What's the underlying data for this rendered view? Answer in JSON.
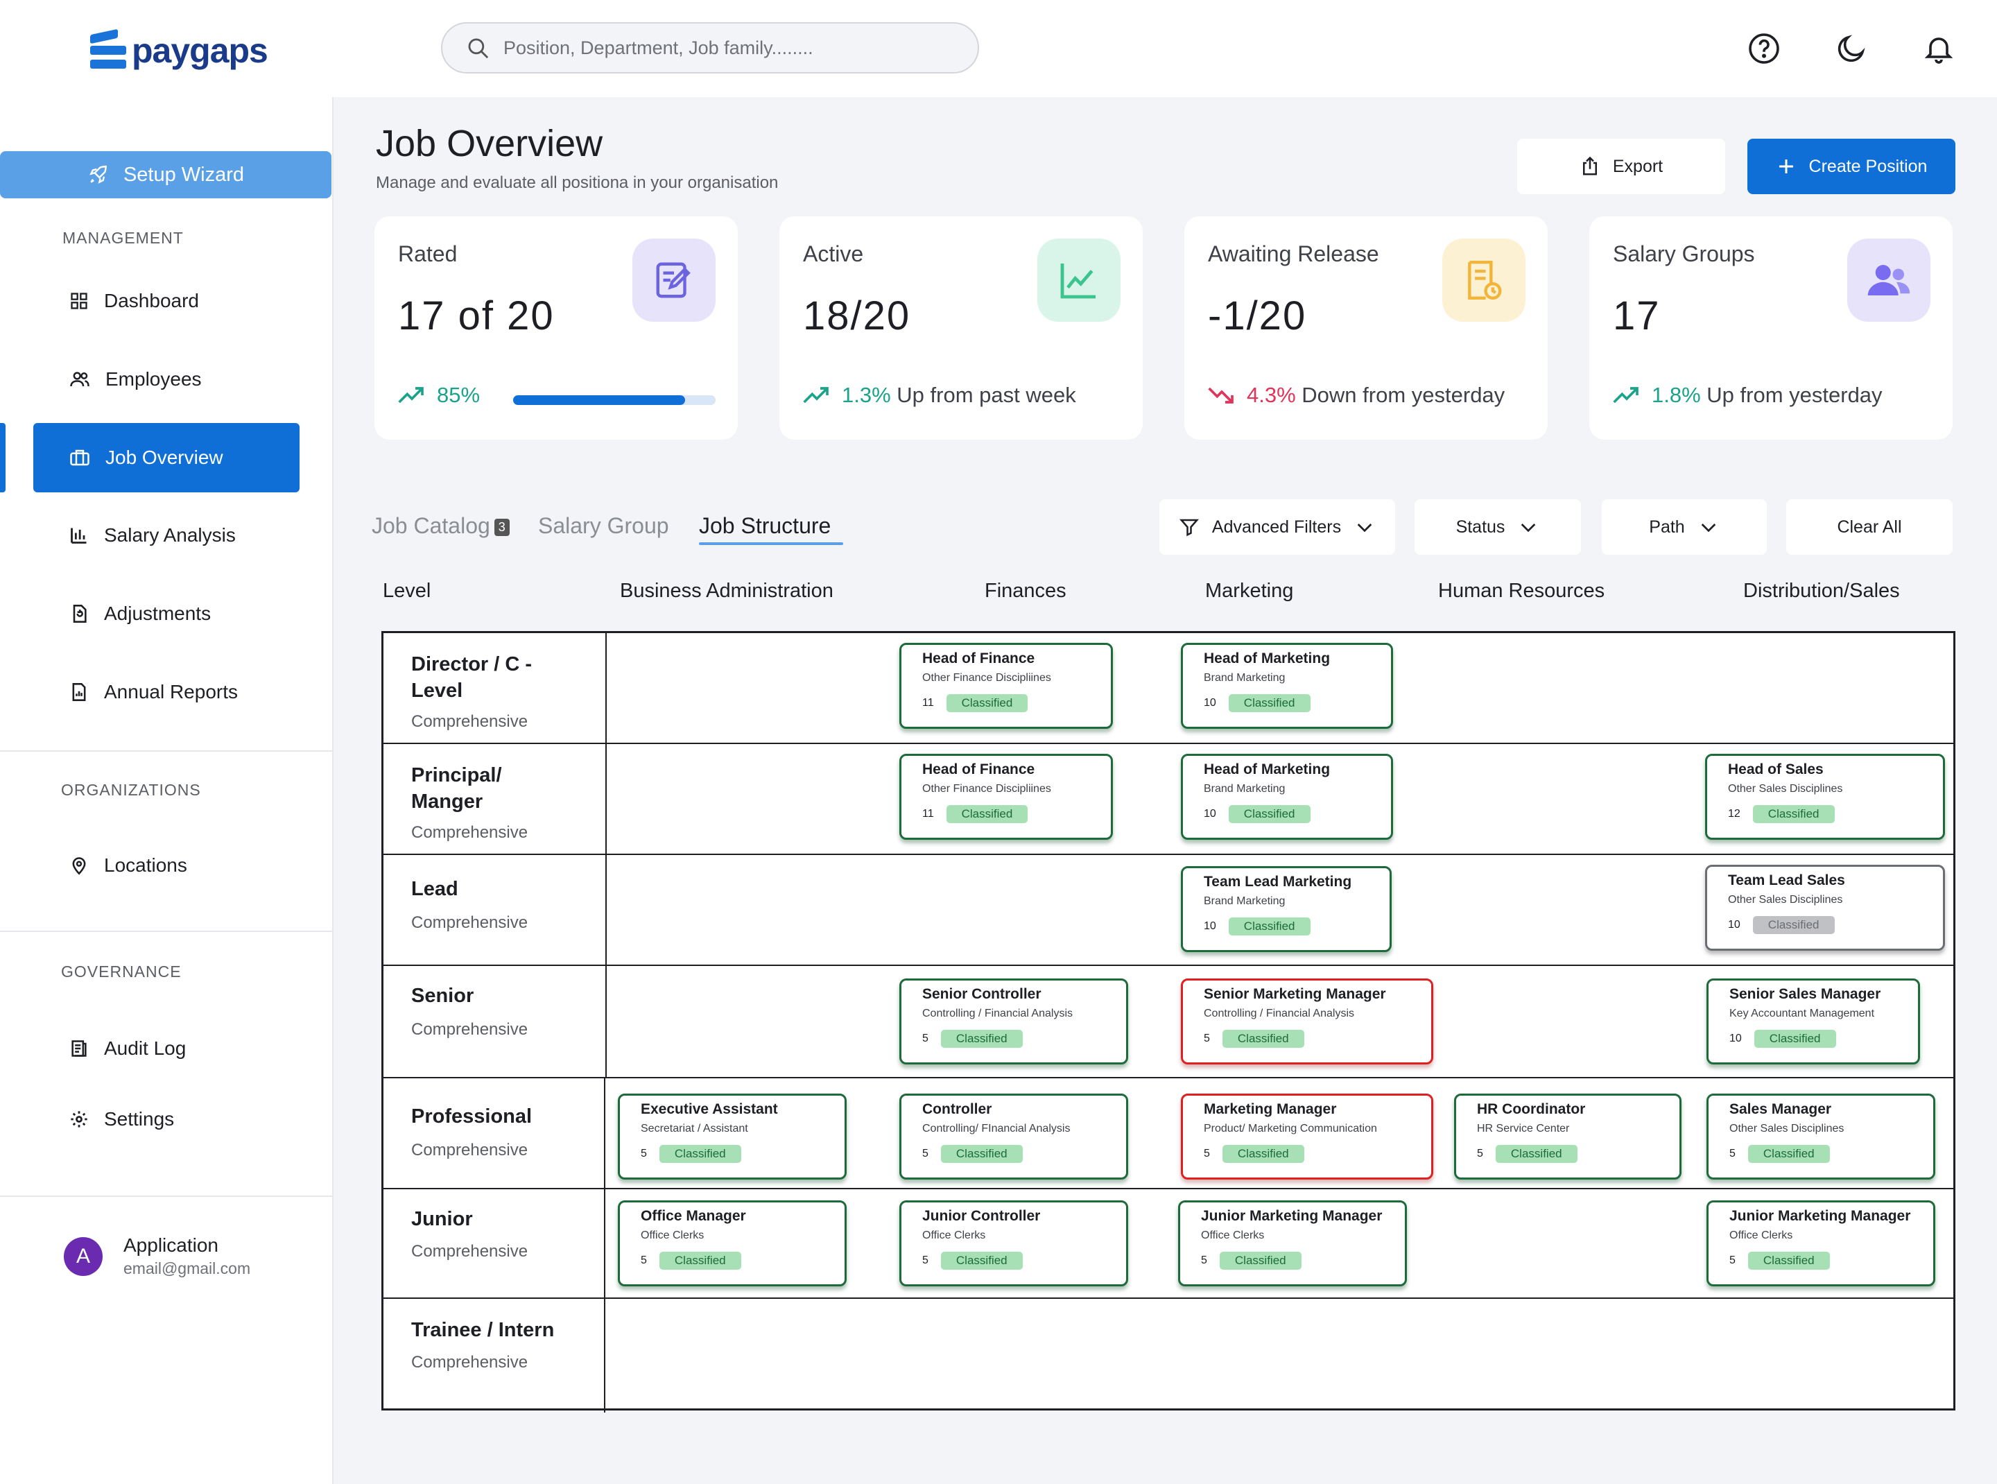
{
  "app": {
    "logo_text": "paygaps"
  },
  "search": {
    "placeholder": "Position, Department, Job family........"
  },
  "topbar_icons": [
    "help-icon",
    "moon-icon",
    "bell-icon"
  ],
  "sidebar": {
    "setup_wizard": "Setup Wizard",
    "management_title": "MANAGEMENT",
    "items": [
      {
        "label": "Dashboard",
        "icon": "dashboard-icon"
      },
      {
        "label": "Employees",
        "icon": "users-icon"
      },
      {
        "label": "Job Overview",
        "icon": "briefcase-icon",
        "active": true
      },
      {
        "label": "Salary Analysis",
        "icon": "bar-chart-icon"
      },
      {
        "label": "Adjustments",
        "icon": "adjust-icon"
      },
      {
        "label": "Annual Reports",
        "icon": "report-icon"
      }
    ],
    "organizations_title": "ORGANIZATIONS",
    "org_items": [
      {
        "label": "Locations",
        "icon": "location-pin-icon"
      }
    ],
    "governance_title": "GOVERNANCE",
    "gov_items": [
      {
        "label": "Audit Log",
        "icon": "log-icon"
      },
      {
        "label": "Settings",
        "icon": "gear-icon"
      }
    ],
    "user": {
      "initial": "A",
      "name": "Application",
      "email": "email@gmail.com"
    }
  },
  "header": {
    "title": "Job Overview",
    "subtitle": "Manage and evaluate all positiona in your organisation",
    "export_label": "Export",
    "create_label": "Create Position"
  },
  "stats": [
    {
      "label": "Rated",
      "value": "17 of 20",
      "trend_value": "85%",
      "trend_text": "",
      "direction": "up",
      "progress": 0.85,
      "icon": "edit-doc-icon",
      "icon_bg": "#e6e3fb",
      "icon_color": "#6c63e0"
    },
    {
      "label": "Active",
      "value": "18/20",
      "trend_value": "1.3%",
      "trend_text": "Up from past week",
      "direction": "up",
      "icon": "line-chart-icon",
      "icon_bg": "#d9f5ea",
      "icon_color": "#3cc48e"
    },
    {
      "label": "Awaiting Release",
      "value": "-1/20",
      "trend_value": "4.3%",
      "trend_text": "Down from yesterday",
      "direction": "down",
      "icon": "pending-doc-icon",
      "icon_bg": "#fdf1d4",
      "icon_color": "#f2b53a"
    },
    {
      "label": "Salary Groups",
      "value": "17",
      "trend_value": "1.8%",
      "trend_text": "Up from yesterday",
      "direction": "up",
      "icon": "group-icon",
      "icon_bg": "#e6e3fb",
      "icon_color": "#7a6cf0"
    }
  ],
  "tabs": [
    {
      "label": "Job Catalog",
      "badge": "3"
    },
    {
      "label": "Salary Group"
    },
    {
      "label": "Job Structure",
      "active": true
    }
  ],
  "filters": {
    "advanced": "Advanced Filters",
    "status": "Status",
    "path": "Path",
    "clear": "Clear All"
  },
  "columns": [
    "Level",
    "Business Administration",
    "Finances",
    "Marketing",
    "Human Resources",
    "Distribution/Sales"
  ],
  "levels": [
    {
      "name": "Director / C -\nLevel",
      "sub": "Comprehensive"
    },
    {
      "name": "Principal/\nManger",
      "sub": "Comprehensive"
    },
    {
      "name": "Lead",
      "sub": "Comprehensive"
    },
    {
      "name": "Senior",
      "sub": "Comprehensive"
    },
    {
      "name": "Professional",
      "sub": "Comprehensive"
    },
    {
      "name": "Junior",
      "sub": "Comprehensive"
    },
    {
      "name": "Trainee / Intern",
      "sub": "Comprehensive"
    }
  ],
  "cards": [
    {
      "title": "Head of Finance",
      "sub": "Other Finance Discipliines",
      "num": "11",
      "status": "Classified",
      "style": "green"
    },
    {
      "title": "Head of Marketing",
      "sub": "Brand Marketing",
      "num": "10",
      "status": "Classified",
      "style": "green"
    },
    {
      "title": "Head of Finance",
      "sub": "Other Finance Discipliines",
      "num": "11",
      "status": "Classified",
      "style": "green"
    },
    {
      "title": "Head of Marketing",
      "sub": "Brand Marketing",
      "num": "10",
      "status": "Classified",
      "style": "green"
    },
    {
      "title": "Head of Sales",
      "sub": "Other Sales Disciplines",
      "num": "12",
      "status": "Classified",
      "style": "green"
    },
    {
      "title": "Team Lead Marketing",
      "sub": "Brand Marketing",
      "num": "10",
      "status": "Classified",
      "style": "green"
    },
    {
      "title": "Team Lead Sales",
      "sub": "Other Sales Disciplines",
      "num": "10",
      "status": "Classified",
      "style": "grey"
    },
    {
      "title": "Senior Controller",
      "sub": "Controlling / Financial Analysis",
      "num": "5",
      "status": "Classified",
      "style": "green"
    },
    {
      "title": "Senior Marketing Manager",
      "sub": "Controlling / Financial Analysis",
      "num": "5",
      "status": "Classified",
      "style": "red"
    },
    {
      "title": "Senior Sales Manager",
      "sub": "Key Accountant Management",
      "num": "10",
      "status": "Classified",
      "style": "green"
    },
    {
      "title": "Executive Assistant",
      "sub": "Secretariat / Assistant",
      "num": "5",
      "status": "Classified",
      "style": "green"
    },
    {
      "title": "Controller",
      "sub": "Controlling/ FInancial Analysis",
      "num": "5",
      "status": "Classified",
      "style": "green"
    },
    {
      "title": "Marketing Manager",
      "sub": "Product/ Marketing Communication",
      "num": "5",
      "status": "Classified",
      "style": "red"
    },
    {
      "title": "HR Coordinator",
      "sub": "HR Service Center",
      "num": "5",
      "status": "Classified",
      "style": "green"
    },
    {
      "title": "Sales Manager",
      "sub": "Other Sales Disciplines",
      "num": "5",
      "status": "Classified",
      "style": "green"
    },
    {
      "title": "Office Manager",
      "sub": "Office Clerks",
      "num": "5",
      "status": "Classified",
      "style": "green"
    },
    {
      "title": "Junior Controller",
      "sub": "Office Clerks",
      "num": "5",
      "status": "Classified",
      "style": "green"
    },
    {
      "title": "Junior Marketing Manager",
      "sub": "Office Clerks",
      "num": "5",
      "status": "Classified",
      "style": "green"
    },
    {
      "title": "Junior Marketing Manager",
      "sub": "Office Clerks",
      "num": "5",
      "status": "Classified",
      "style": "green"
    }
  ]
}
